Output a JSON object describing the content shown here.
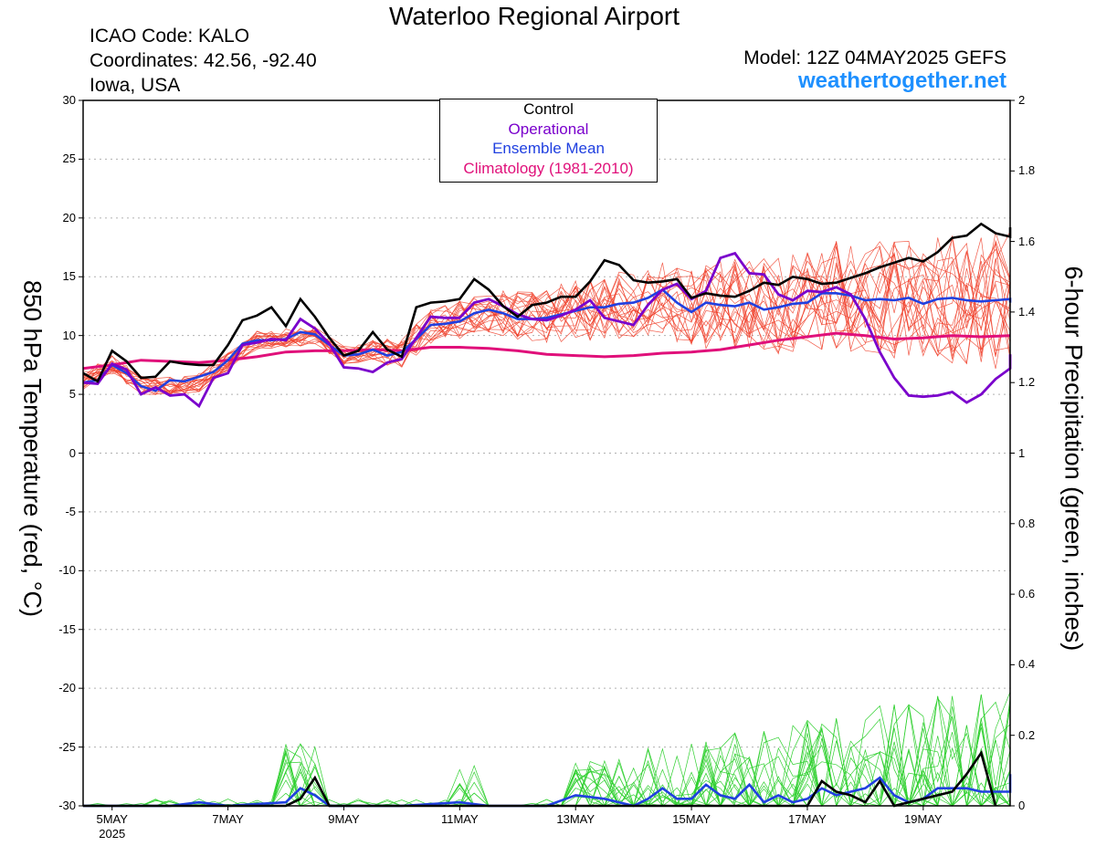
{
  "header": {
    "title": "Waterloo Regional Airport",
    "icao": "ICAO Code: KALO",
    "coords": "Coordinates: 42.56, -92.40",
    "region": "Iowa, USA",
    "model": "Model: 12Z 04MAY2025 GEFS",
    "site": "weathertogether.net"
  },
  "colors": {
    "control": "#000000",
    "operational": "#7a00cc",
    "mean": "#2040e0",
    "climo": "#e0107a",
    "member_temp": "#f0402a",
    "member_precip": "#30d030",
    "site": "#1e90ff",
    "grid": "#b0b0b0"
  },
  "chart_data": {
    "type": "line",
    "ylabel_left": "850 hPa Temperature (red, °C)",
    "ylabel_right": "6-hour Precipitation (green, inches)",
    "ylim_left": [
      -30,
      30
    ],
    "ylim_right": [
      0,
      2
    ],
    "yticks_left": [
      30,
      25,
      20,
      15,
      10,
      5,
      0,
      -5,
      -10,
      -15,
      -20,
      -25,
      -30
    ],
    "yticks_right": [
      2,
      1.8,
      1.6,
      1.4,
      1.2,
      1,
      0.8,
      0.6,
      0.4,
      0.2,
      0
    ],
    "xlim_days": [
      4.5,
      20.5
    ],
    "x_ticks": [
      {
        "day": 5,
        "label": "5MAY",
        "sub": "2025"
      },
      {
        "day": 7,
        "label": "7MAY",
        "sub": ""
      },
      {
        "day": 9,
        "label": "9MAY",
        "sub": ""
      },
      {
        "day": 11,
        "label": "11MAY",
        "sub": ""
      },
      {
        "day": 13,
        "label": "13MAY",
        "sub": ""
      },
      {
        "day": 15,
        "label": "15MAY",
        "sub": ""
      },
      {
        "day": 17,
        "label": "17MAY",
        "sub": ""
      },
      {
        "day": 19,
        "label": "19MAY",
        "sub": ""
      }
    ],
    "legend": [
      "Control",
      "Operational",
      "Ensemble Mean",
      "Climatology (1981-2010)"
    ],
    "grid": true,
    "temperature": {
      "control": [
        [
          4.5,
          6.8
        ],
        [
          4.75,
          6.1
        ],
        [
          5,
          8.7
        ],
        [
          5.25,
          7.8
        ],
        [
          5.5,
          6.4
        ],
        [
          5.75,
          6.5
        ],
        [
          6,
          7.8
        ],
        [
          6.25,
          7.6
        ],
        [
          6.5,
          7.5
        ],
        [
          6.75,
          7.5
        ],
        [
          7,
          9.2
        ],
        [
          7.25,
          11.3
        ],
        [
          7.5,
          11.7
        ],
        [
          7.75,
          12.4
        ],
        [
          8,
          10.8
        ],
        [
          8.25,
          13.1
        ],
        [
          8.5,
          11.6
        ],
        [
          8.75,
          9.8
        ],
        [
          9,
          8.3
        ],
        [
          9.25,
          8.7
        ],
        [
          9.5,
          10.3
        ],
        [
          9.75,
          8.8
        ],
        [
          10,
          8.2
        ],
        [
          10.25,
          12.4
        ],
        [
          10.5,
          12.8
        ],
        [
          10.75,
          12.9
        ],
        [
          11,
          13.1
        ],
        [
          11.25,
          14.8
        ],
        [
          11.5,
          13.9
        ],
        [
          11.75,
          12.5
        ],
        [
          12,
          11.6
        ],
        [
          12.25,
          12.6
        ],
        [
          12.5,
          12.8
        ],
        [
          12.75,
          13.3
        ],
        [
          13,
          13.3
        ],
        [
          13.25,
          14.6
        ],
        [
          13.5,
          16.4
        ],
        [
          13.75,
          16.0
        ],
        [
          14,
          14.7
        ],
        [
          14.25,
          14.5
        ],
        [
          14.5,
          14.6
        ],
        [
          14.75,
          14.8
        ],
        [
          15,
          13.2
        ],
        [
          15.25,
          13.6
        ],
        [
          15.5,
          13.4
        ],
        [
          15.75,
          13.3
        ],
        [
          16,
          13.8
        ],
        [
          16.25,
          14.5
        ],
        [
          16.5,
          14.3
        ],
        [
          16.75,
          15.0
        ],
        [
          17,
          14.8
        ],
        [
          17.25,
          14.4
        ],
        [
          17.5,
          14.5
        ],
        [
          17.75,
          14.9
        ],
        [
          18,
          15.3
        ],
        [
          18.25,
          15.8
        ],
        [
          18.5,
          16.2
        ],
        [
          18.75,
          16.6
        ],
        [
          19,
          16.3
        ],
        [
          19.25,
          17.1
        ],
        [
          19.5,
          18.3
        ],
        [
          19.75,
          18.5
        ],
        [
          20,
          19.5
        ],
        [
          20.25,
          18.7
        ],
        [
          20.5,
          18.4
        ],
        [
          20.75,
          19.2
        ]
      ],
      "operational": [
        [
          4.5,
          6.0
        ],
        [
          4.75,
          5.9
        ],
        [
          5,
          7.6
        ],
        [
          5.25,
          7.1
        ],
        [
          5.5,
          5.0
        ],
        [
          5.75,
          5.6
        ],
        [
          6,
          4.9
        ],
        [
          6.25,
          5.0
        ],
        [
          6.5,
          4.0
        ],
        [
          6.75,
          6.4
        ],
        [
          7,
          6.8
        ],
        [
          7.25,
          9.2
        ],
        [
          7.5,
          9.4
        ],
        [
          7.75,
          9.7
        ],
        [
          8,
          9.6
        ],
        [
          8.25,
          11.4
        ],
        [
          8.5,
          10.6
        ],
        [
          8.75,
          9.3
        ],
        [
          9,
          7.3
        ],
        [
          9.25,
          7.2
        ],
        [
          9.5,
          6.9
        ],
        [
          9.75,
          7.7
        ],
        [
          10,
          8.0
        ],
        [
          10.25,
          9.8
        ],
        [
          10.5,
          11.6
        ],
        [
          10.75,
          11.5
        ],
        [
          11,
          11.5
        ],
        [
          11.25,
          12.8
        ],
        [
          11.5,
          13.1
        ],
        [
          11.75,
          12.5
        ],
        [
          12,
          11.8
        ],
        [
          12.25,
          11.4
        ],
        [
          12.5,
          11.3
        ],
        [
          12.75,
          11.7
        ],
        [
          13,
          12.2
        ],
        [
          13.25,
          13.0
        ],
        [
          13.5,
          11.5
        ],
        [
          13.75,
          11.2
        ],
        [
          14,
          10.9
        ],
        [
          14.25,
          12.6
        ],
        [
          14.5,
          13.9
        ],
        [
          14.75,
          14.4
        ],
        [
          15,
          13.1
        ],
        [
          15.25,
          13.8
        ],
        [
          15.5,
          16.6
        ],
        [
          15.75,
          17.0
        ],
        [
          16,
          15.3
        ],
        [
          16.25,
          15.2
        ],
        [
          16.5,
          13.5
        ],
        [
          16.75,
          13.0
        ],
        [
          17,
          13.8
        ],
        [
          17.25,
          13.7
        ],
        [
          17.5,
          14.1
        ],
        [
          17.75,
          13.5
        ],
        [
          18,
          11.4
        ],
        [
          18.25,
          8.6
        ],
        [
          18.5,
          6.4
        ],
        [
          18.75,
          4.9
        ],
        [
          19,
          4.8
        ],
        [
          19.25,
          4.9
        ],
        [
          19.5,
          5.2
        ],
        [
          19.75,
          4.3
        ],
        [
          20,
          5.0
        ],
        [
          20.25,
          6.3
        ],
        [
          20.5,
          7.2
        ],
        [
          20.75,
          8.4
        ]
      ],
      "mean": [
        [
          4.5,
          6.0
        ],
        [
          4.75,
          6.2
        ],
        [
          5,
          7.5
        ],
        [
          5.25,
          6.8
        ],
        [
          5.5,
          5.7
        ],
        [
          5.75,
          5.3
        ],
        [
          6,
          6.2
        ],
        [
          6.25,
          6.1
        ],
        [
          6.5,
          6.5
        ],
        [
          6.75,
          6.9
        ],
        [
          7,
          7.9
        ],
        [
          7.25,
          9.3
        ],
        [
          7.5,
          9.6
        ],
        [
          7.75,
          9.6
        ],
        [
          8,
          9.7
        ],
        [
          8.25,
          10.3
        ],
        [
          8.5,
          10.1
        ],
        [
          8.75,
          9.2
        ],
        [
          9,
          8.3
        ],
        [
          9.25,
          8.4
        ],
        [
          9.5,
          8.8
        ],
        [
          9.75,
          8.3
        ],
        [
          10,
          8.6
        ],
        [
          10.25,
          9.7
        ],
        [
          10.5,
          10.9
        ],
        [
          10.75,
          11.0
        ],
        [
          11,
          11.2
        ],
        [
          11.25,
          11.9
        ],
        [
          11.5,
          12.2
        ],
        [
          11.75,
          11.9
        ],
        [
          12,
          11.4
        ],
        [
          12.25,
          11.4
        ],
        [
          12.5,
          11.5
        ],
        [
          12.75,
          11.8
        ],
        [
          13,
          12.1
        ],
        [
          13.25,
          12.4
        ],
        [
          13.5,
          12.4
        ],
        [
          13.75,
          12.7
        ],
        [
          14,
          12.8
        ],
        [
          14.25,
          13.2
        ],
        [
          14.5,
          13.9
        ],
        [
          14.75,
          12.8
        ],
        [
          15,
          12.0
        ],
        [
          15.25,
          12.8
        ],
        [
          15.5,
          12.6
        ],
        [
          15.75,
          12.5
        ],
        [
          16,
          12.8
        ],
        [
          16.25,
          12.2
        ],
        [
          16.5,
          12.4
        ],
        [
          16.75,
          12.7
        ],
        [
          17,
          12.8
        ],
        [
          17.25,
          13.6
        ],
        [
          17.5,
          13.6
        ],
        [
          17.75,
          13.4
        ],
        [
          18,
          13.0
        ],
        [
          18.25,
          13.1
        ],
        [
          18.5,
          13.0
        ],
        [
          18.75,
          13.2
        ],
        [
          19,
          12.7
        ],
        [
          19.25,
          13.1
        ],
        [
          19.5,
          13.2
        ],
        [
          19.75,
          13.0
        ],
        [
          20,
          12.9
        ],
        [
          20.25,
          13.0
        ],
        [
          20.5,
          13.1
        ],
        [
          20.75,
          12.8
        ]
      ],
      "climo": [
        [
          4.5,
          7.2
        ],
        [
          5,
          7.5
        ],
        [
          5.5,
          7.9
        ],
        [
          6,
          7.8
        ],
        [
          6.5,
          7.7
        ],
        [
          7,
          7.9
        ],
        [
          7.5,
          8.2
        ],
        [
          8,
          8.6
        ],
        [
          8.5,
          8.7
        ],
        [
          9,
          8.7
        ],
        [
          9.5,
          8.8
        ],
        [
          10,
          8.7
        ],
        [
          10.5,
          9.0
        ],
        [
          11,
          9.0
        ],
        [
          11.5,
          8.9
        ],
        [
          12,
          8.7
        ],
        [
          12.5,
          8.4
        ],
        [
          13,
          8.3
        ],
        [
          13.5,
          8.2
        ],
        [
          14,
          8.3
        ],
        [
          14.5,
          8.5
        ],
        [
          15,
          8.6
        ],
        [
          15.5,
          8.8
        ],
        [
          16,
          9.2
        ],
        [
          16.5,
          9.6
        ],
        [
          17,
          9.9
        ],
        [
          17.5,
          10.2
        ],
        [
          18,
          10.0
        ],
        [
          18.5,
          9.7
        ],
        [
          19,
          9.8
        ],
        [
          19.5,
          10.0
        ],
        [
          20,
          9.9
        ],
        [
          20.5,
          10.0
        ],
        [
          20.75,
          10.0
        ]
      ]
    },
    "precip": {
      "control": [
        [
          4.5,
          0
        ],
        [
          8,
          0.0
        ],
        [
          8.25,
          0.02
        ],
        [
          8.5,
          0.08
        ],
        [
          8.75,
          0.0
        ],
        [
          17,
          0
        ],
        [
          17.25,
          0.07
        ],
        [
          17.5,
          0.04
        ],
        [
          17.75,
          0.03
        ],
        [
          18,
          0.01
        ],
        [
          18.25,
          0.07
        ],
        [
          18.5,
          0.0
        ],
        [
          19.5,
          0.04
        ],
        [
          19.75,
          0.09
        ],
        [
          20,
          0.15
        ],
        [
          20.25,
          0.0
        ]
      ],
      "mean": [
        [
          4.5,
          0.0
        ],
        [
          6,
          0.0
        ],
        [
          6.5,
          0.01
        ],
        [
          7,
          0.0
        ],
        [
          8,
          0.01
        ],
        [
          8.25,
          0.05
        ],
        [
          8.5,
          0.03
        ],
        [
          8.75,
          0.0
        ],
        [
          10,
          0.0
        ],
        [
          11,
          0.01
        ],
        [
          11.5,
          0.0
        ],
        [
          12.5,
          0.0
        ],
        [
          13,
          0.03
        ],
        [
          13.5,
          0.02
        ],
        [
          14,
          0.0
        ],
        [
          14.25,
          0.02
        ],
        [
          14.5,
          0.05
        ],
        [
          14.75,
          0.02
        ],
        [
          15,
          0.02
        ],
        [
          15.25,
          0.06
        ],
        [
          15.5,
          0.03
        ],
        [
          15.75,
          0.02
        ],
        [
          16,
          0.06
        ],
        [
          16.25,
          0.01
        ],
        [
          16.5,
          0.03
        ],
        [
          16.75,
          0.01
        ],
        [
          17,
          0.02
        ],
        [
          17.25,
          0.05
        ],
        [
          17.5,
          0.03
        ],
        [
          17.75,
          0.04
        ],
        [
          18,
          0.05
        ],
        [
          18.25,
          0.08
        ],
        [
          18.5,
          0.03
        ],
        [
          18.75,
          0.01
        ],
        [
          19,
          0.02
        ],
        [
          19.25,
          0.05
        ],
        [
          19.5,
          0.05
        ],
        [
          19.75,
          0.05
        ],
        [
          20,
          0.04
        ],
        [
          20.25,
          0.04
        ],
        [
          20.5,
          0.04
        ],
        [
          20.75,
          0.09
        ]
      ]
    },
    "member_temp_base": [
      [
        4.5,
        6.2
      ],
      [
        5,
        7.5
      ],
      [
        5.5,
        5.8
      ],
      [
        6,
        5.7
      ],
      [
        6.5,
        6.0
      ],
      [
        7,
        7.8
      ],
      [
        7.5,
        9.6
      ],
      [
        8,
        9.8
      ],
      [
        8.5,
        10.0
      ],
      [
        9,
        8.3
      ],
      [
        9.5,
        8.7
      ],
      [
        10,
        8.5
      ],
      [
        10.5,
        10.8
      ],
      [
        11,
        11.4
      ],
      [
        11.5,
        12.0
      ],
      [
        12,
        11.6
      ],
      [
        12.5,
        11.8
      ],
      [
        13,
        12.1
      ],
      [
        13.5,
        12.5
      ],
      [
        14,
        12.8
      ],
      [
        14.5,
        13.5
      ],
      [
        15,
        12.2
      ],
      [
        15.5,
        12.8
      ],
      [
        16,
        12.6
      ],
      [
        16.5,
        12.6
      ],
      [
        17,
        12.9
      ],
      [
        17.5,
        13.5
      ],
      [
        18,
        13.2
      ],
      [
        18.5,
        13.1
      ],
      [
        19,
        12.9
      ],
      [
        19.5,
        13.2
      ],
      [
        20,
        13.0
      ],
      [
        20.5,
        13.0
      ],
      [
        20.75,
        12.8
      ]
    ],
    "member_count": 20
  }
}
